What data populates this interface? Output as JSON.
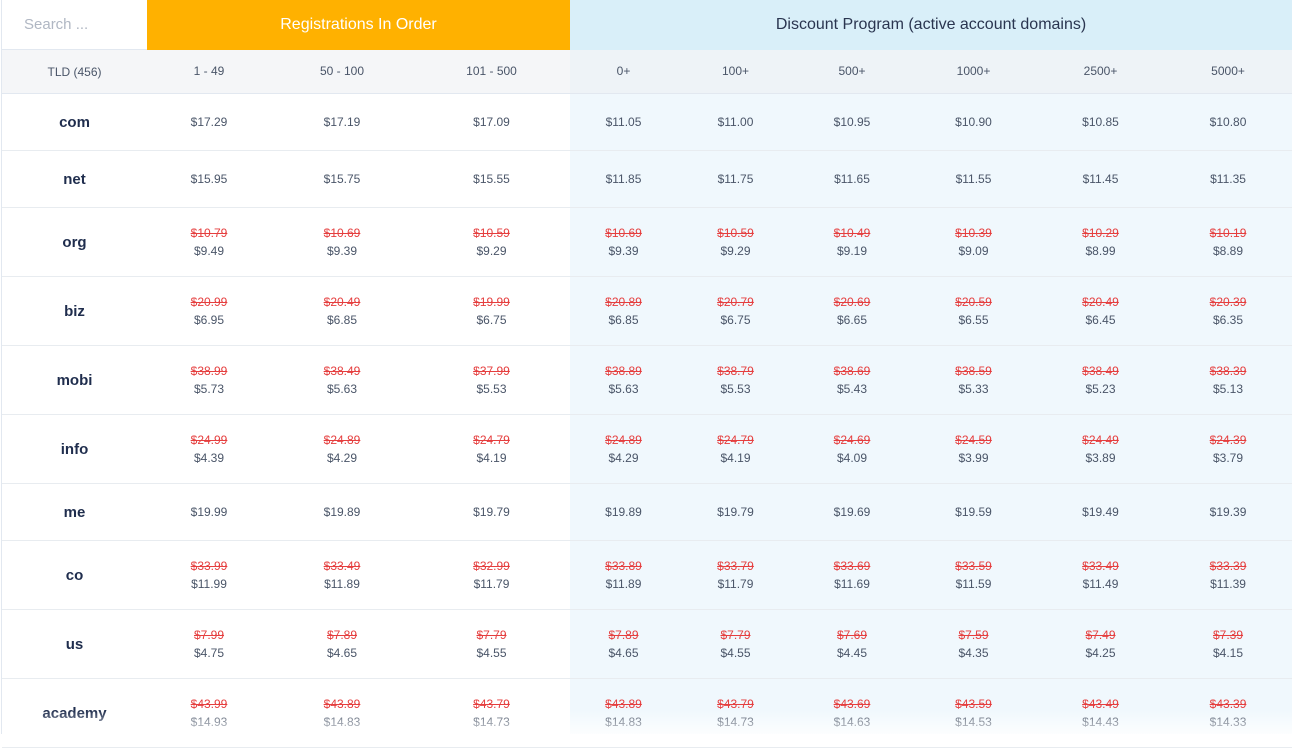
{
  "search": {
    "placeholder": "Search ..."
  },
  "headers": {
    "registrations": "Registrations In Order",
    "discount": "Discount Program (active account domains)"
  },
  "columns": [
    "TLD (456)",
    "1 - 49",
    "50 - 100",
    "101 - 500",
    "0+",
    "100+",
    "500+",
    "1000+",
    "2500+",
    "5000+"
  ],
  "colors": {
    "registrations_header": "#ffb100",
    "discount_header": "#d9eff9",
    "strike_price": "#e53e3e"
  },
  "rows": [
    {
      "tld": "com",
      "prices": [
        {
          "new": "$17.29"
        },
        {
          "new": "$17.19"
        },
        {
          "new": "$17.09"
        },
        {
          "new": "$11.05"
        },
        {
          "new": "$11.00"
        },
        {
          "new": "$10.95"
        },
        {
          "new": "$10.90"
        },
        {
          "new": "$10.85"
        },
        {
          "new": "$10.80"
        }
      ]
    },
    {
      "tld": "net",
      "prices": [
        {
          "new": "$15.95"
        },
        {
          "new": "$15.75"
        },
        {
          "new": "$15.55"
        },
        {
          "new": "$11.85"
        },
        {
          "new": "$11.75"
        },
        {
          "new": "$11.65"
        },
        {
          "new": "$11.55"
        },
        {
          "new": "$11.45"
        },
        {
          "new": "$11.35"
        }
      ]
    },
    {
      "tld": "org",
      "prices": [
        {
          "old": "$10.79",
          "new": "$9.49"
        },
        {
          "old": "$10.69",
          "new": "$9.39"
        },
        {
          "old": "$10.59",
          "new": "$9.29"
        },
        {
          "old": "$10.69",
          "new": "$9.39"
        },
        {
          "old": "$10.59",
          "new": "$9.29"
        },
        {
          "old": "$10.49",
          "new": "$9.19"
        },
        {
          "old": "$10.39",
          "new": "$9.09"
        },
        {
          "old": "$10.29",
          "new": "$8.99"
        },
        {
          "old": "$10.19",
          "new": "$8.89"
        }
      ]
    },
    {
      "tld": "biz",
      "prices": [
        {
          "old": "$20.99",
          "new": "$6.95"
        },
        {
          "old": "$20.49",
          "new": "$6.85"
        },
        {
          "old": "$19.99",
          "new": "$6.75"
        },
        {
          "old": "$20.89",
          "new": "$6.85"
        },
        {
          "old": "$20.79",
          "new": "$6.75"
        },
        {
          "old": "$20.69",
          "new": "$6.65"
        },
        {
          "old": "$20.59",
          "new": "$6.55"
        },
        {
          "old": "$20.49",
          "new": "$6.45"
        },
        {
          "old": "$20.39",
          "new": "$6.35"
        }
      ]
    },
    {
      "tld": "mobi",
      "prices": [
        {
          "old": "$38.99",
          "new": "$5.73"
        },
        {
          "old": "$38.49",
          "new": "$5.63"
        },
        {
          "old": "$37.99",
          "new": "$5.53"
        },
        {
          "old": "$38.89",
          "new": "$5.63"
        },
        {
          "old": "$38.79",
          "new": "$5.53"
        },
        {
          "old": "$38.69",
          "new": "$5.43"
        },
        {
          "old": "$38.59",
          "new": "$5.33"
        },
        {
          "old": "$38.49",
          "new": "$5.23"
        },
        {
          "old": "$38.39",
          "new": "$5.13"
        }
      ]
    },
    {
      "tld": "info",
      "prices": [
        {
          "old": "$24.99",
          "new": "$4.39"
        },
        {
          "old": "$24.89",
          "new": "$4.29"
        },
        {
          "old": "$24.79",
          "new": "$4.19"
        },
        {
          "old": "$24.89",
          "new": "$4.29"
        },
        {
          "old": "$24.79",
          "new": "$4.19"
        },
        {
          "old": "$24.69",
          "new": "$4.09"
        },
        {
          "old": "$24.59",
          "new": "$3.99"
        },
        {
          "old": "$24.49",
          "new": "$3.89"
        },
        {
          "old": "$24.39",
          "new": "$3.79"
        }
      ]
    },
    {
      "tld": "me",
      "prices": [
        {
          "new": "$19.99"
        },
        {
          "new": "$19.89"
        },
        {
          "new": "$19.79"
        },
        {
          "new": "$19.89"
        },
        {
          "new": "$19.79"
        },
        {
          "new": "$19.69"
        },
        {
          "new": "$19.59"
        },
        {
          "new": "$19.49"
        },
        {
          "new": "$19.39"
        }
      ]
    },
    {
      "tld": "co",
      "prices": [
        {
          "old": "$33.99",
          "new": "$11.99"
        },
        {
          "old": "$33.49",
          "new": "$11.89"
        },
        {
          "old": "$32.99",
          "new": "$11.79"
        },
        {
          "old": "$33.89",
          "new": "$11.89"
        },
        {
          "old": "$33.79",
          "new": "$11.79"
        },
        {
          "old": "$33.69",
          "new": "$11.69"
        },
        {
          "old": "$33.59",
          "new": "$11.59"
        },
        {
          "old": "$33.49",
          "new": "$11.49"
        },
        {
          "old": "$33.39",
          "new": "$11.39"
        }
      ]
    },
    {
      "tld": "us",
      "prices": [
        {
          "old": "$7.99",
          "new": "$4.75"
        },
        {
          "old": "$7.89",
          "new": "$4.65"
        },
        {
          "old": "$7.79",
          "new": "$4.55"
        },
        {
          "old": "$7.89",
          "new": "$4.65"
        },
        {
          "old": "$7.79",
          "new": "$4.55"
        },
        {
          "old": "$7.69",
          "new": "$4.45"
        },
        {
          "old": "$7.59",
          "new": "$4.35"
        },
        {
          "old": "$7.49",
          "new": "$4.25"
        },
        {
          "old": "$7.39",
          "new": "$4.15"
        }
      ]
    },
    {
      "tld": "academy",
      "prices": [
        {
          "old": "$43.99",
          "new": "$14.93"
        },
        {
          "old": "$43.89",
          "new": "$14.83"
        },
        {
          "old": "$43.79",
          "new": "$14.73"
        },
        {
          "old": "$43.89",
          "new": "$14.83"
        },
        {
          "old": "$43.79",
          "new": "$14.73"
        },
        {
          "old": "$43.69",
          "new": "$14.63"
        },
        {
          "old": "$43.59",
          "new": "$14.53"
        },
        {
          "old": "$43.49",
          "new": "$14.43"
        },
        {
          "old": "$43.39",
          "new": "$14.33"
        }
      ]
    }
  ]
}
